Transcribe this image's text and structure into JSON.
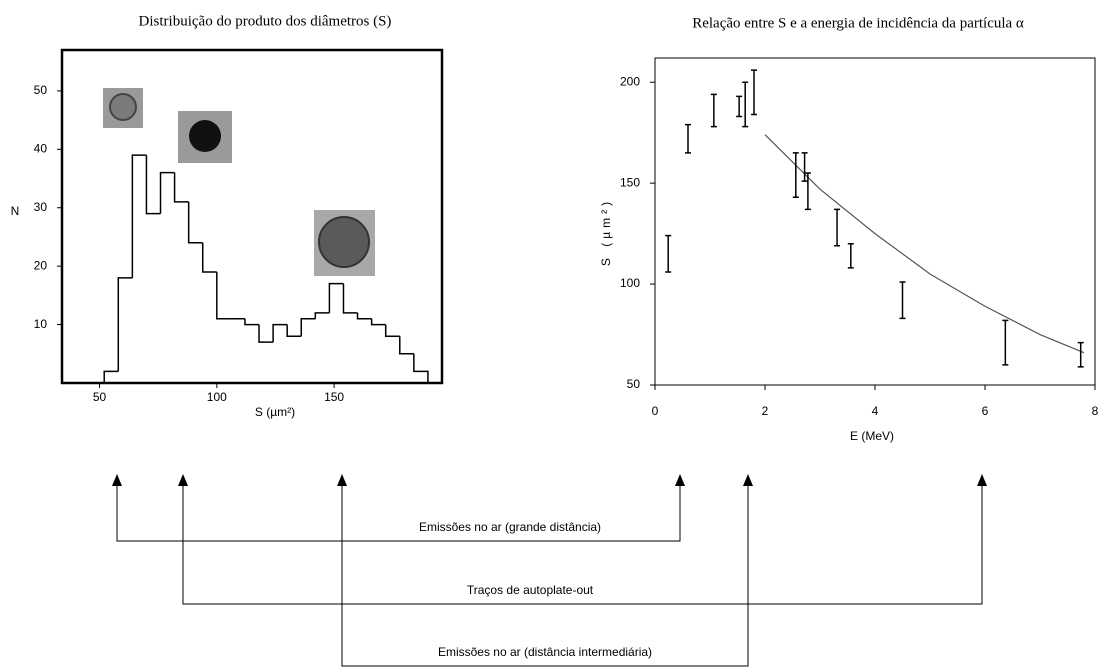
{
  "chart_data": [
    {
      "type": "histogram",
      "title": "Distribuição do produto dos diâmetros (S)",
      "x_label": "S (µm²)",
      "y_label": "N",
      "bins": [
        52,
        58,
        64,
        70,
        76,
        82,
        88,
        94,
        100,
        106,
        112,
        118,
        124,
        130,
        136,
        142,
        148,
        154,
        160,
        166,
        172,
        178,
        184,
        190
      ],
      "values": [
        2,
        18,
        39,
        29,
        36,
        31,
        24,
        19,
        11,
        11,
        10,
        7,
        10,
        8,
        11,
        12,
        17,
        12,
        11,
        10,
        8,
        5,
        2
      ],
      "color": "#000000",
      "xlim": [
        34,
        196
      ],
      "xticks": [
        50,
        100,
        150
      ],
      "ylim": [
        0,
        57
      ],
      "yticks": [
        10,
        20,
        30,
        40,
        50
      ]
    },
    {
      "type": "errorbar",
      "title": "Relação entre S e a energia de incidência da partícula α",
      "x_label": "E (MeV)",
      "y_label": "S (µm²)",
      "x": [
        0.24,
        0.6,
        1.07,
        1.53,
        1.64,
        1.8,
        2.56,
        2.72,
        2.78,
        3.31,
        3.56,
        4.5,
        6.37,
        7.74
      ],
      "values": [
        115,
        172,
        186,
        188,
        189,
        195,
        154,
        158,
        146,
        128,
        114,
        92,
        71,
        65
      ],
      "errors": [
        9,
        7,
        8,
        5,
        11,
        11,
        11,
        7,
        9,
        9,
        6,
        9,
        11,
        6
      ],
      "fit": {
        "x": [
          2,
          3,
          4,
          5,
          6,
          7,
          7.8
        ],
        "values": [
          174,
          147,
          125,
          105,
          89,
          75,
          66
        ],
        "color": "#555555"
      },
      "color": "#000000",
      "xlim": [
        0,
        8
      ],
      "xticks": [
        0,
        2,
        4,
        6,
        8
      ],
      "ylim": [
        50,
        212
      ],
      "yticks": [
        50,
        100,
        150,
        200
      ]
    }
  ],
  "diagram": {
    "labels": [
      "Emissões no ar (grande distância)",
      "Traços de autoplate-out",
      "Emissões no ar (distância intermediária)"
    ]
  }
}
